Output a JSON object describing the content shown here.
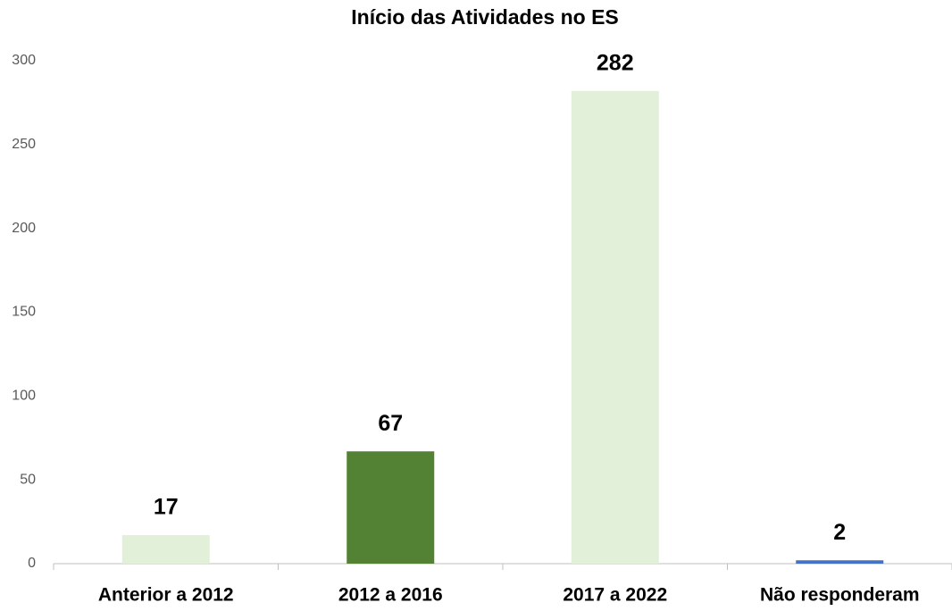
{
  "chart_data": {
    "type": "bar",
    "title": "Início das Atividades no ES",
    "categories": [
      "Anterior a 2012",
      "2012 a 2016",
      "2017 a 2022",
      "Não responderam"
    ],
    "values": [
      17,
      67,
      282,
      2
    ],
    "colors": [
      "#e2efd9",
      "#548235",
      "#e2efd9",
      "#4472c4"
    ],
    "ylim": [
      0,
      300
    ],
    "yticks": [
      0,
      50,
      100,
      150,
      200,
      250,
      300
    ],
    "grid": false
  }
}
